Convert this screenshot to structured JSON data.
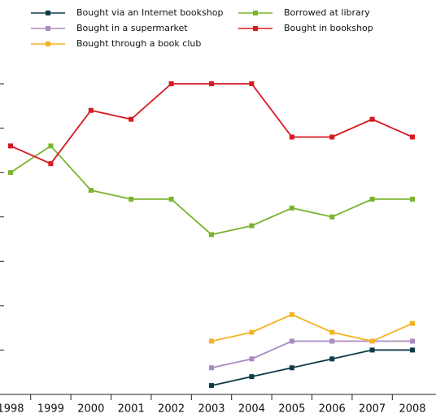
{
  "chart_data": {
    "type": "line",
    "categories": [
      "1998",
      "1999",
      "2000",
      "2001",
      "2002",
      "2003",
      "2004",
      "2005",
      "2006",
      "2007",
      "2008"
    ],
    "series": [
      {
        "name": "Bought via an Internet bookshop",
        "color": "#0e3b48",
        "values": [
          null,
          null,
          null,
          null,
          null,
          2,
          4,
          6,
          8,
          10,
          10
        ]
      },
      {
        "name": "Bought in a supermarket",
        "color": "#a98bc0",
        "values": [
          null,
          null,
          null,
          null,
          null,
          6,
          8,
          12,
          12,
          12,
          12
        ]
      },
      {
        "name": "Bought through a book club",
        "color": "#f5b324",
        "values": [
          null,
          null,
          null,
          null,
          null,
          12,
          14,
          18,
          14,
          12,
          16
        ]
      },
      {
        "name": "Borrowed at library",
        "color": "#7ab32e",
        "values": [
          50,
          56,
          46,
          44,
          44,
          36,
          38,
          42,
          40,
          44,
          44
        ]
      },
      {
        "name": "Bought in bookshop",
        "color": "#d71920",
        "values": [
          56,
          52,
          64,
          62,
          70,
          70,
          70,
          58,
          58,
          62,
          58
        ]
      }
    ],
    "ylim": [
      0,
      70
    ],
    "yticks": [
      10,
      20,
      30,
      40,
      50,
      60,
      70
    ]
  }
}
